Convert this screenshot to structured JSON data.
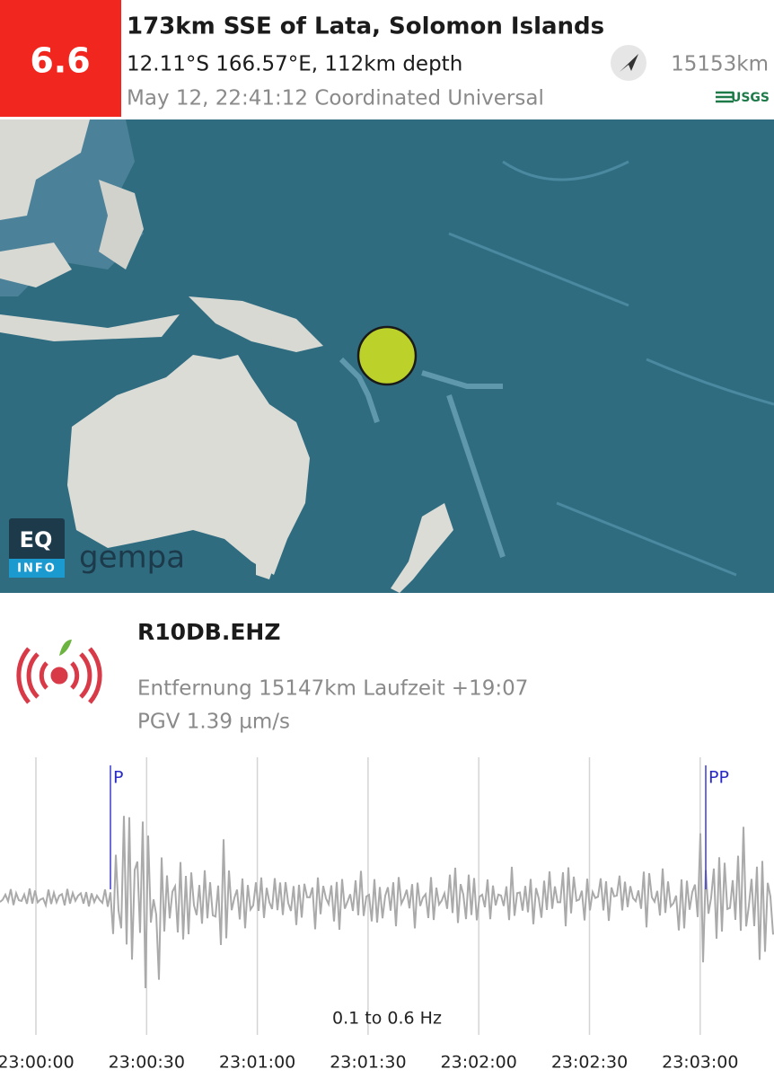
{
  "header": {
    "magnitude": "6.6",
    "title": "173km SSE of Lata, Solomon Islands",
    "location": "12.11°S 166.57°E, 112km depth",
    "time": "May 12, 22:41:12 Coordinated Universal",
    "distance": "15153km",
    "source": "USGS"
  },
  "map": {
    "logo_top": "EQ",
    "logo_bottom": "INFO",
    "brand": "gempa"
  },
  "station": {
    "name": "R10DB.EHZ",
    "details": "Entfernung 15147km Laufzeit +19:07",
    "pgv": "PGV 1.39 µm/s"
  },
  "seismogram": {
    "phases": [
      "P",
      "PP"
    ],
    "filter": "0.1 to 0.6 Hz",
    "time_labels": [
      "23:00:00",
      "23:00:30",
      "23:01:00",
      "23:01:30",
      "23:02:00",
      "23:02:30",
      "23:03:00"
    ]
  }
}
